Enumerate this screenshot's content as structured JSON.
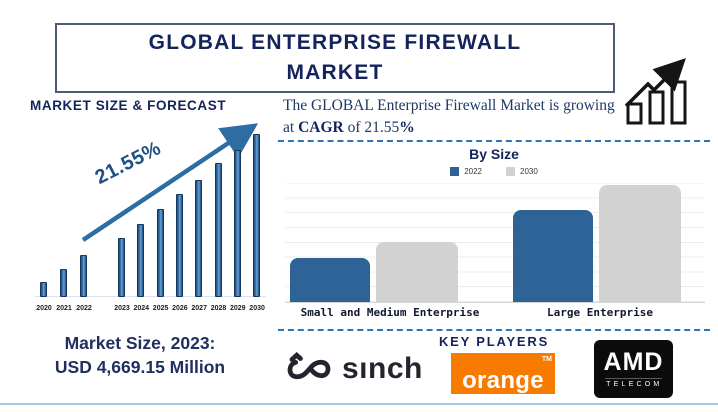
{
  "header": {
    "title": "GLOBAL ENTERPRISE FIREWALL MARKET"
  },
  "intro": {
    "part1": "The GLOBAL Enterprise Firewall Market is growing at ",
    "bold1": "CAGR",
    "part2": " of 21.55",
    "bold2": "%"
  },
  "market_size": {
    "line1": "Market Size, 2023:",
    "line2": "USD 4,669.15 Million"
  },
  "key_players": {
    "heading": "KEY PLAYERS",
    "sinch": {
      "text": "sınch"
    },
    "orange": {
      "text": "orange",
      "tm": "TM"
    },
    "amd": {
      "text": "AMD",
      "sub": "TELECOM"
    }
  },
  "icons": {
    "growth": "growth-chart-icon",
    "sinch_symbol": "infinity-knot-icon"
  },
  "colors": {
    "navy": "#14235c",
    "bar_blue": "#2e6da4",
    "bar_blue_dark": "#1f4e79",
    "bysize_blue": "#2d6397",
    "bysize_gray": "#d2d2d2",
    "dashed_blue": "#2e75b6",
    "bottom_line_blue": "#abc8e3",
    "orange_brand": "#f77b00",
    "logo_black": "#0b0b0b"
  },
  "chart_data": [
    {
      "type": "bar",
      "title": "MARKET SIZE & FORECAST",
      "categories": [
        "2020",
        "2021",
        "2022",
        "2023",
        "2024",
        "2025",
        "2026",
        "2027",
        "2028",
        "2029",
        "2030"
      ],
      "values": [
        9,
        17,
        26,
        36,
        45,
        54,
        63,
        72,
        82,
        90,
        100
      ],
      "annotation": "21.55%",
      "ylabel": "",
      "xlabel": "",
      "ylim": [
        0,
        100
      ],
      "grid": false,
      "note": "no y-axis shown; values are relative bar heights estimated from pixels"
    },
    {
      "type": "bar",
      "title": "By Size",
      "categories": [
        "Small and Medium Enterprise",
        "Large Enterprise"
      ],
      "series": [
        {
          "name": "2022",
          "color": "#2d6397",
          "values": [
            38,
            79
          ]
        },
        {
          "name": "2030",
          "color": "#d2d2d2",
          "values": [
            51,
            100
          ]
        }
      ],
      "ylim": [
        0,
        100
      ],
      "grid": true,
      "legend_position": "top",
      "note": "no y-axis shown; values are relative bar heights estimated from pixels"
    }
  ]
}
